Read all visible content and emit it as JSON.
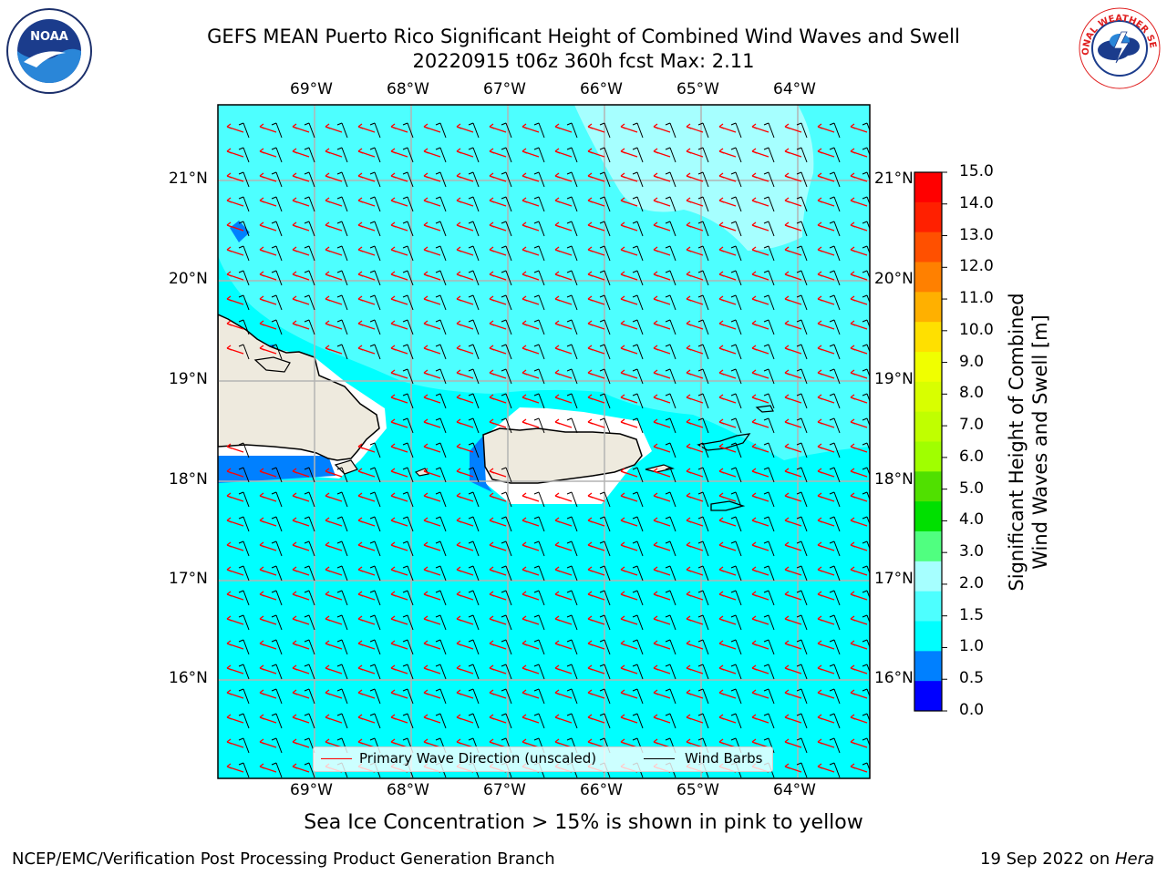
{
  "header": {
    "title_line1": "GEFS MEAN Puerto Rico Significant Height of Combined Wind Waves and Swell",
    "title_line2": "20220915 t06z 360h fcst   Max: 2.11"
  },
  "logos": {
    "left": {
      "name": "noaa-logo",
      "text": "NOAA",
      "ring_text": "NATIONAL OCEANIC AND ATMOSPHERIC ADMINISTRATION · U.S. DEPARTMENT OF COMMERCE"
    },
    "right": {
      "name": "nws-logo",
      "ring_text": "NATIONAL WEATHER SERVICE"
    }
  },
  "map": {
    "lon_labels": [
      "69°W",
      "68°W",
      "67°W",
      "66°W",
      "65°W",
      "64°W"
    ],
    "lat_labels": [
      "21°N",
      "20°N",
      "19°N",
      "18°N",
      "17°N",
      "16°N"
    ],
    "colors": {
      "ocean": "#00ffff",
      "calm": "#4dffff",
      "swell": "#a6ffff",
      "land": "#eeeade",
      "low": "#0080ff",
      "lowest": "#0040ff",
      "arrow": "#ff0000",
      "barb": "#000000"
    }
  },
  "legend": {
    "wave_direction_label": "Primary Wave Direction (unscaled)",
    "wind_barbs_label": "Wind Barbs"
  },
  "colorbar": {
    "label_line1": "Significant Height of Combined",
    "label_line2": "Wind Waves and Swell [m]",
    "ticks": [
      "15.0",
      "14.0",
      "13.0",
      "12.0",
      "11.0",
      "10.0",
      "9.0",
      "8.0",
      "7.0",
      "6.0",
      "5.0",
      "4.0",
      "3.0",
      "2.0",
      "1.5",
      "1.0",
      "0.5",
      "0.0"
    ],
    "segment_colors": [
      "#ff0000",
      "#ff2000",
      "#ff5000",
      "#ff8000",
      "#ffb000",
      "#ffe000",
      "#f0ff00",
      "#d8ff00",
      "#c0ff00",
      "#a0ff00",
      "#50e000",
      "#00e000",
      "#50ff80",
      "#a6ffff",
      "#4dffff",
      "#00ffff",
      "#0080ff",
      "#0000ff"
    ]
  },
  "footer": {
    "note": "Sea Ice Concentration > 15% is shown in pink to yellow",
    "left": "NCEP/EMC/Verification Post Processing Product Generation Branch",
    "right_prefix": "19 Sep 2022 on ",
    "right_host": "Hera"
  }
}
